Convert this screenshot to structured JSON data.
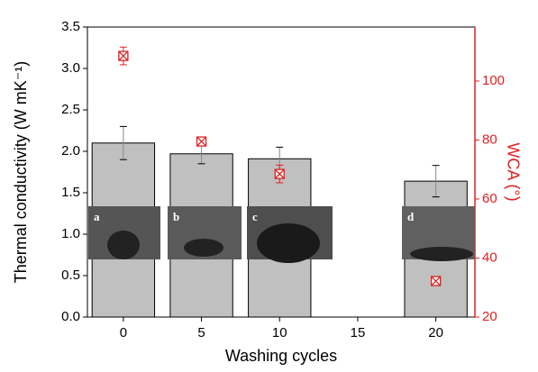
{
  "chart_data": {
    "type": "bar",
    "x_label": "Washing cycles",
    "y_label": "Thermal conductivity (W mK⁻¹)",
    "y2_label": "WCA (°)",
    "xlim": [
      -2.3,
      22.5
    ],
    "xticks": [
      0,
      5,
      10,
      15,
      20
    ],
    "ylim": [
      0,
      3.5
    ],
    "yticks": [
      {
        "value": 0,
        "label": "0.0"
      },
      0.5,
      {
        "value": 1,
        "label": "1.0"
      },
      1.5,
      {
        "value": 2,
        "label": "2.0"
      },
      2.5,
      {
        "value": 3,
        "label": "3.0"
      },
      3.5
    ],
    "y2lim": [
      20,
      118.3
    ],
    "y2ticks": [
      20,
      40,
      60,
      80,
      100
    ],
    "x": [
      0,
      5,
      10,
      20
    ],
    "series": [
      {
        "type": "bar",
        "color": "#c0c0c0",
        "values": [
          2.1,
          1.97,
          1.91,
          1.64
        ],
        "errors": [
          0.2,
          0.12,
          0.14,
          0.19
        ]
      },
      {
        "type": "scatter",
        "axis": "y2",
        "color": "#e02020",
        "values": [
          108.5,
          79.5,
          68.5,
          32.2
        ],
        "errors": [
          3,
          1,
          3,
          1
        ]
      }
    ],
    "insets": [
      "a",
      "b",
      "c",
      "d"
    ]
  }
}
